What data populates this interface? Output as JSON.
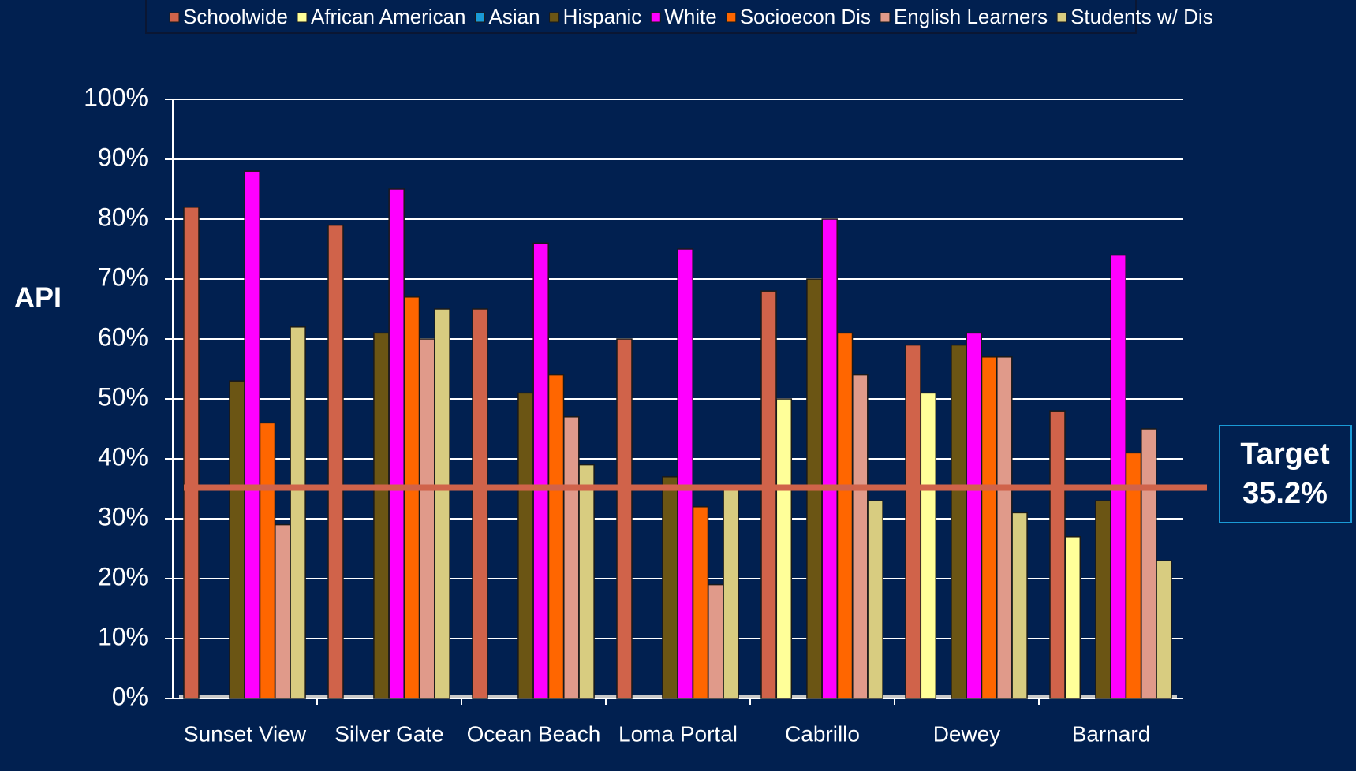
{
  "chart_data": {
    "type": "bar",
    "y_label": "API",
    "categories": [
      "Sunset View",
      "Silver Gate",
      "Ocean Beach",
      "Loma Portal",
      "Cabrillo",
      "Dewey",
      "Barnard"
    ],
    "series": [
      {
        "name": "Schoolwide",
        "color": "#d0634a",
        "values": [
          82,
          79,
          65,
          60,
          68,
          59,
          48
        ]
      },
      {
        "name": "African American",
        "color": "#ffff99",
        "values": [
          null,
          null,
          null,
          null,
          50,
          51,
          27
        ]
      },
      {
        "name": "Asian",
        "color": "#1a9ad6",
        "values": [
          null,
          null,
          null,
          null,
          null,
          null,
          null
        ]
      },
      {
        "name": "Hispanic",
        "color": "#6b5514",
        "values": [
          53,
          61,
          51,
          37,
          70,
          59,
          33
        ]
      },
      {
        "name": "White",
        "color": "#ff00ff",
        "values": [
          88,
          85,
          76,
          75,
          80,
          61,
          74
        ]
      },
      {
        "name": "Socioecon Dis",
        "color": "#ff6600",
        "values": [
          46,
          67,
          54,
          32,
          61,
          57,
          41
        ]
      },
      {
        "name": "English Learners",
        "color": "#e09a8a",
        "values": [
          29,
          60,
          47,
          19,
          54,
          57,
          45
        ]
      },
      {
        "name": "Students w/ Dis",
        "color": "#d8cc80",
        "values": [
          62,
          65,
          39,
          35,
          33,
          31,
          23
        ]
      }
    ],
    "ylim": [
      0,
      100
    ],
    "yticks": [
      {
        "value": 0,
        "label": "0%"
      },
      {
        "value": 10,
        "label": "10%"
      },
      {
        "value": 20,
        "label": "20%"
      },
      {
        "value": 30,
        "label": "30%"
      },
      {
        "value": 40,
        "label": "40%"
      },
      {
        "value": 50,
        "label": "50%"
      },
      {
        "value": 60,
        "label": "60%"
      },
      {
        "value": 70,
        "label": "70%"
      },
      {
        "value": 80,
        "label": "80%"
      },
      {
        "value": 90,
        "label": "90%"
      },
      {
        "value": 100,
        "label": "100%"
      }
    ],
    "grid": true,
    "legend": "top",
    "target": {
      "label": "Target",
      "value": 35.2,
      "value_label": "35.2%",
      "color": "#d0634a"
    }
  }
}
